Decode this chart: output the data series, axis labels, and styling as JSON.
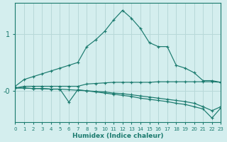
{
  "xlabel": "Humidex (Indice chaleur)",
  "bg_color": "#d4eeee",
  "grid_color": "#b8d8d8",
  "line_color": "#1a7a6e",
  "x_ticks": [
    0,
    1,
    2,
    3,
    4,
    5,
    6,
    7,
    8,
    9,
    10,
    11,
    12,
    13,
    14,
    15,
    16,
    17,
    18,
    19,
    20,
    21,
    22,
    23
  ],
  "xlim": [
    0,
    23
  ],
  "ylim": [
    -0.55,
    1.55
  ],
  "y_ticks": [
    0.0,
    1.0
  ],
  "y_tick_labels": [
    "-0",
    "1"
  ],
  "lines": [
    {
      "x": [
        0,
        1,
        2,
        3,
        4,
        5,
        6,
        7,
        8,
        9,
        10,
        11,
        12,
        13,
        14,
        15,
        16,
        17,
        18,
        19,
        20,
        21,
        22,
        23
      ],
      "y": [
        0.08,
        0.2,
        0.25,
        0.3,
        0.35,
        0.4,
        0.45,
        0.5,
        0.78,
        0.9,
        1.05,
        1.25,
        1.42,
        1.28,
        1.1,
        0.85,
        0.78,
        0.78,
        0.45,
        0.4,
        0.32,
        0.18,
        0.18,
        0.15
      ]
    },
    {
      "x": [
        0,
        1,
        2,
        3,
        4,
        5,
        6,
        7,
        8,
        9,
        10,
        11,
        12,
        13,
        14,
        15,
        16,
        17,
        18,
        19,
        20,
        21,
        22,
        23
      ],
      "y": [
        0.05,
        0.08,
        0.08,
        0.08,
        0.08,
        0.08,
        0.08,
        0.08,
        0.12,
        0.13,
        0.14,
        0.15,
        0.15,
        0.15,
        0.15,
        0.15,
        0.16,
        0.16,
        0.16,
        0.16,
        0.16,
        0.16,
        0.16,
        0.15
      ]
    },
    {
      "x": [
        0,
        1,
        2,
        3,
        4,
        5,
        6,
        7,
        8,
        9,
        10,
        11,
        12,
        13,
        14,
        15,
        16,
        17,
        18,
        19,
        20,
        21,
        22,
        23
      ],
      "y": [
        0.05,
        0.05,
        0.04,
        0.04,
        0.03,
        0.03,
        0.02,
        0.01,
        0.0,
        -0.01,
        -0.02,
        -0.04,
        -0.05,
        -0.07,
        -0.09,
        -0.11,
        -0.13,
        -0.15,
        -0.17,
        -0.19,
        -0.22,
        -0.28,
        -0.35,
        -0.28
      ]
    },
    {
      "x": [
        0,
        1,
        2,
        3,
        4,
        5,
        6,
        7,
        8,
        9,
        10,
        11,
        12,
        13,
        14,
        15,
        16,
        17,
        18,
        19,
        20,
        21,
        22,
        23
      ],
      "y": [
        0.05,
        0.05,
        0.04,
        0.04,
        0.03,
        0.03,
        -0.2,
        0.02,
        0.0,
        -0.02,
        -0.04,
        -0.06,
        -0.08,
        -0.1,
        -0.13,
        -0.15,
        -0.17,
        -0.19,
        -0.22,
        -0.24,
        -0.28,
        -0.32,
        -0.48,
        -0.3
      ]
    }
  ]
}
